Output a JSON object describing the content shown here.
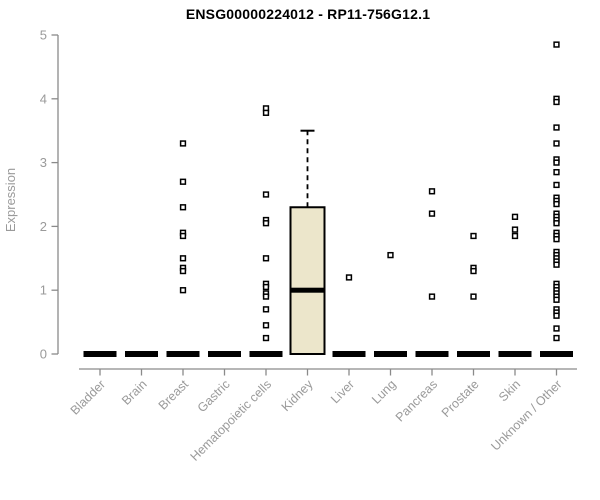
{
  "chart_data": {
    "type": "boxplot",
    "title": "ENSG00000224012 - RP11-756G12.1",
    "xlabel": "",
    "ylabel": "Expression",
    "ylim": [
      0,
      5
    ],
    "yticks": [
      0,
      1,
      2,
      3,
      4,
      5
    ],
    "grid": false,
    "legend": "none",
    "categories": [
      "Bladder",
      "Brain",
      "Breast",
      "Gastric",
      "Hematopoietic cells",
      "Kidney",
      "Liver",
      "Lung",
      "Pancreas",
      "Prostate",
      "Skin",
      "Unknown / Other"
    ],
    "groups": [
      {
        "name": "Bladder",
        "zero_bar": true,
        "points": []
      },
      {
        "name": "Brain",
        "zero_bar": true,
        "points": []
      },
      {
        "name": "Breast",
        "zero_bar": true,
        "points": [
          3.3,
          2.7,
          2.3,
          1.9,
          1.85,
          1.5,
          1.35,
          1.3,
          1.0
        ]
      },
      {
        "name": "Gastric",
        "zero_bar": true,
        "points": []
      },
      {
        "name": "Hematopoietic cells",
        "zero_bar": true,
        "points": [
          3.85,
          3.78,
          2.5,
          2.1,
          2.05,
          1.5,
          1.1,
          1.05,
          0.95,
          0.9,
          0.7,
          0.45,
          0.25
        ]
      },
      {
        "name": "Kidney",
        "zero_bar": false,
        "points": [],
        "box": {
          "q1": 0,
          "median": 1.0,
          "q3": 2.3,
          "whisker_low": 0,
          "whisker_high": 3.5
        }
      },
      {
        "name": "Liver",
        "zero_bar": true,
        "points": [
          1.2
        ]
      },
      {
        "name": "Lung",
        "zero_bar": true,
        "points": [
          1.55
        ]
      },
      {
        "name": "Pancreas",
        "zero_bar": true,
        "points": [
          2.55,
          2.2,
          0.9
        ]
      },
      {
        "name": "Prostate",
        "zero_bar": true,
        "points": [
          1.85,
          1.35,
          1.3,
          0.9
        ]
      },
      {
        "name": "Skin",
        "zero_bar": true,
        "points": [
          2.15,
          1.95,
          1.85
        ]
      },
      {
        "name": "Unknown / Other",
        "zero_bar": true,
        "points": [
          4.85,
          4.0,
          3.95,
          3.55,
          3.3,
          3.05,
          3.0,
          2.85,
          2.65,
          2.45,
          2.4,
          2.35,
          2.2,
          2.15,
          2.1,
          2.05,
          1.9,
          1.85,
          1.8,
          1.6,
          1.55,
          1.5,
          1.45,
          1.4,
          1.1,
          1.05,
          1.0,
          0.95,
          0.9,
          0.85,
          0.7,
          0.65,
          0.6,
          0.4,
          0.25
        ]
      }
    ]
  },
  "colors": {
    "box_fill": "#ECE6CB",
    "box_stroke": "#000000",
    "point_stroke": "#000000",
    "point_fill": "#ffffff",
    "zero_bar": "#000000",
    "axis_line": "#8a8a8a",
    "tick_label": "#9a9a9a",
    "axis_label": "#9a9a9a",
    "title_color": "#000000",
    "background": "#ffffff"
  }
}
